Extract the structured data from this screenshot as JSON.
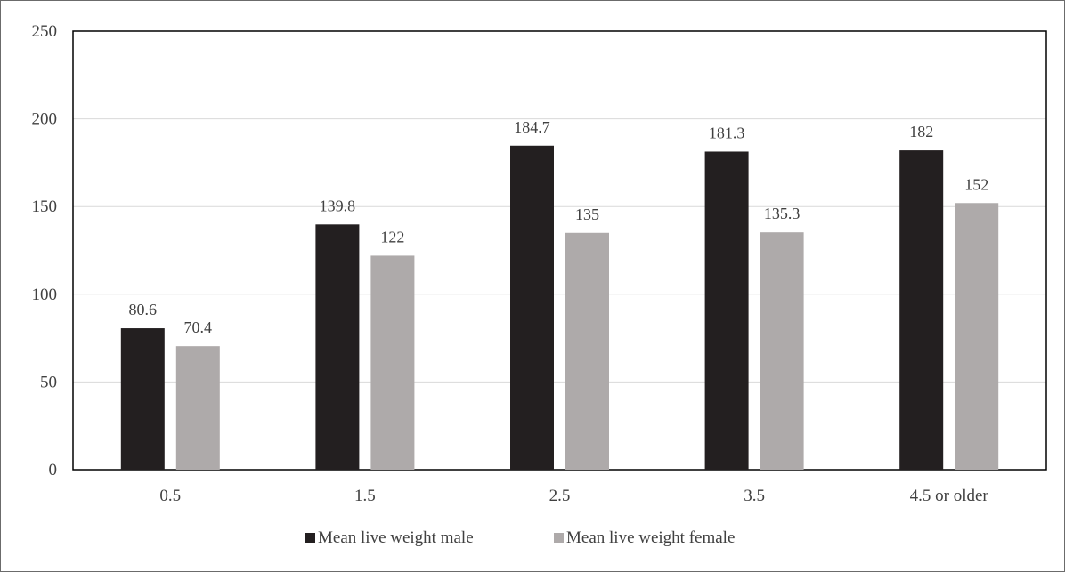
{
  "chart_data": {
    "type": "bar",
    "title": "",
    "xlabel": "",
    "ylabel": "",
    "categories": [
      "0.5",
      "1.5",
      "2.5",
      "3.5",
      "4.5 or older"
    ],
    "series": [
      {
        "name": "Mean live weight male",
        "values": [
          80.6,
          139.8,
          184.7,
          181.3,
          182
        ],
        "labels": [
          "80.6",
          "139.8",
          "184.7",
          "181.3",
          "182"
        ],
        "color": "#231f20"
      },
      {
        "name": "Mean live weight female",
        "values": [
          70.4,
          122,
          135,
          135.3,
          152
        ],
        "labels": [
          "70.4",
          "122",
          "135",
          "135.3",
          "152"
        ],
        "color": "#aeaaaa"
      }
    ],
    "ylim": [
      0,
      250
    ],
    "yticks": [
      "0",
      "50",
      "100",
      "150",
      "200",
      "250"
    ],
    "grid": true,
    "legend": "bottom-center"
  }
}
